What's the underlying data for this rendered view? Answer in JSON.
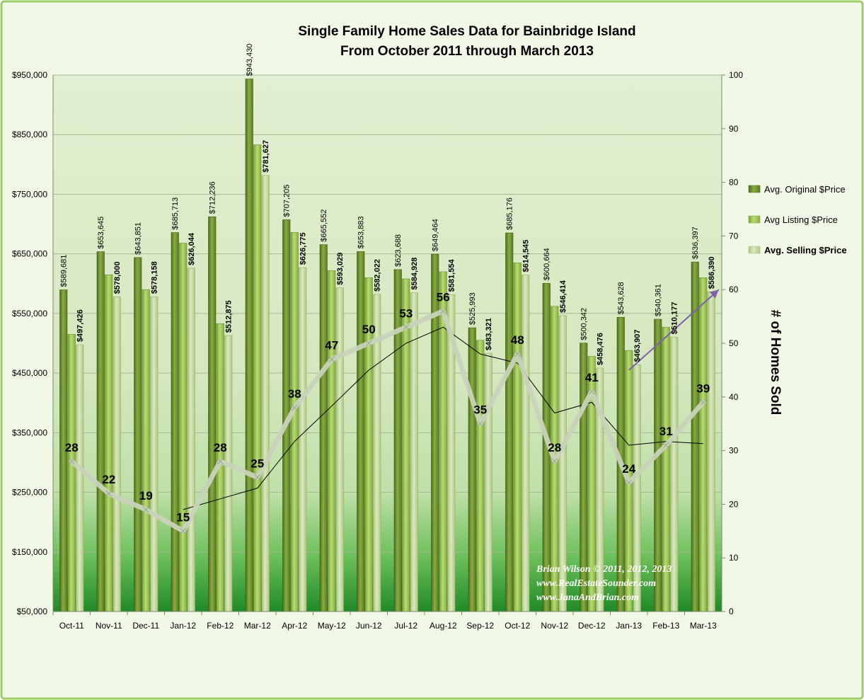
{
  "chart_data": {
    "type": "bar",
    "title": "Single Family Home Sales Data for Bainbridge Island",
    "subtitle": "From October 2011 through March 2013",
    "y2label": "# of Homes Sold",
    "ylim": [
      50000,
      950000
    ],
    "y_ticks": [
      "$50,000",
      "$150,000",
      "$250,000",
      "$350,000",
      "$450,000",
      "$550,000",
      "$650,000",
      "$750,000",
      "$850,000",
      "$950,000"
    ],
    "y2lim": [
      0,
      100
    ],
    "y2_ticks": [
      "0",
      "10",
      "20",
      "30",
      "40",
      "50",
      "60",
      "70",
      "80",
      "90",
      "100"
    ],
    "categories": [
      "Oct-11",
      "Nov-11",
      "Dec-11",
      "Jan-12",
      "Feb-12",
      "Mar-12",
      "Apr-12",
      "May-12",
      "Jun-12",
      "Jul-12",
      "Aug-12",
      "Sep-12",
      "Oct-12",
      "Nov-12",
      "Dec-12",
      "Jan-13",
      "Feb-13",
      "Mar-13"
    ],
    "series": [
      {
        "name": "Avg. Original $Price",
        "color": "#6b8e2a",
        "values": [
          589681,
          653645,
          643851,
          685713,
          712236,
          943430,
          707205,
          665552,
          653883,
          623688,
          649464,
          525993,
          685176,
          600664,
          500342,
          543628,
          540361,
          636397
        ],
        "labels": [
          "$589,681",
          "$653,645",
          "$643,851",
          "$685,713",
          "$712,236",
          "$943,430",
          "$707,205",
          "$665,552",
          "$653,883",
          "$623,688",
          "$649,464",
          "$525,993",
          "$685,176",
          "$600,664",
          "$500,342",
          "$543,628",
          "$540,361",
          "$636,397"
        ]
      },
      {
        "name": "Avg Listing $Price",
        "color": "#9bc44a",
        "values": [
          515000,
          615000,
          590000,
          668000,
          533000,
          833000,
          686000,
          622000,
          610000,
          608000,
          620000,
          505000,
          635000,
          562000,
          478000,
          488000,
          527000,
          610000
        ]
      },
      {
        "name": "Avg. Selling $Price",
        "color": "#c5d9a0",
        "values": [
          497426,
          578000,
          578158,
          626044,
          512875,
          781627,
          626775,
          593029,
          582022,
          584928,
          581554,
          483321,
          614545,
          546414,
          458476,
          463907,
          510177,
          586390
        ],
        "labels": [
          "$497,426",
          "$578,000",
          "$578,158",
          "$626,044",
          "$512,875",
          "$781,627",
          "$626,775",
          "$593,029",
          "$582,022",
          "$584,928",
          "$581,554",
          "$483,321",
          "$614,545",
          "$546,414",
          "$458,476",
          "$463,907",
          "$510,177",
          "$586,390"
        ]
      }
    ],
    "homes_sold": {
      "values": [
        28,
        22,
        19,
        15,
        28,
        25,
        38,
        47,
        50,
        53,
        56,
        35,
        48,
        28,
        41,
        24,
        31,
        39
      ],
      "labels": [
        "28",
        "22",
        "19",
        "15",
        "28",
        "25",
        "38",
        "47",
        "50",
        "53",
        "56",
        "35",
        "48",
        "28",
        "41",
        "24",
        "31",
        "39"
      ],
      "color": "#d4dcc6"
    },
    "trend_line": {
      "color": "#000000",
      "values": [
        null,
        null,
        null,
        19,
        21,
        23,
        31.7,
        38.3,
        45,
        50,
        53,
        48,
        46.3,
        37,
        39,
        31,
        31.7,
        31.3
      ]
    },
    "arrow": {
      "color": "#8060a8",
      "from": [
        "Jan-13",
        45
      ],
      "to": [
        "Mar-13",
        60
      ]
    },
    "legend_position": "right",
    "grid": true
  },
  "watermark": {
    "line1": "Brian Wilson © 2011, 2012, 2013",
    "line2": "www.RealEstateSounder.com",
    "line3": "www.JanaAndBrian.com"
  },
  "colors": {
    "frame": "#9ccc65",
    "background": "#f1f8e6",
    "plot_top": "#dcebc8",
    "plot_bottom": "#2e8b2e"
  }
}
